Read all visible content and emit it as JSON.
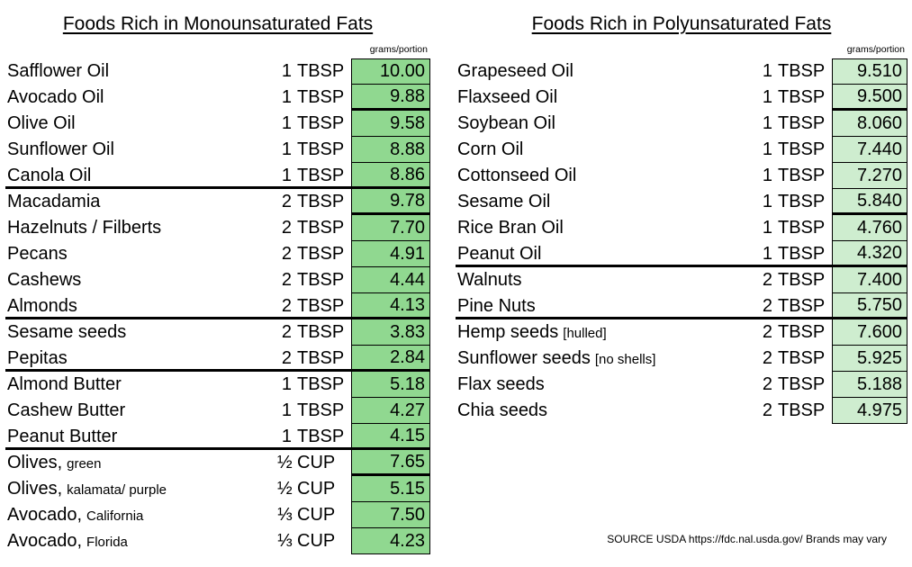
{
  "tables": [
    {
      "title": "Foods Rich in Monounsaturated Fats",
      "unit_label": "grams/portion",
      "cell_color": "#90D890",
      "rows": [
        {
          "name": "Safflower Oil",
          "portion": "1 TBSP",
          "value": "10.00"
        },
        {
          "name": "Avocado Oil",
          "portion": "1 TBSP",
          "value": "9.88",
          "vthick": true
        },
        {
          "name": "Olive Oil",
          "portion": "1 TBSP",
          "value": "9.58"
        },
        {
          "name": "Sunflower Oil",
          "portion": "1 TBSP",
          "value": "8.88"
        },
        {
          "name": "Canola Oil",
          "portion": "1 TBSP",
          "value": "8.86",
          "group_end": true
        },
        {
          "name": "Macadamia",
          "portion": "2 TBSP",
          "value": "9.78",
          "vthick": true
        },
        {
          "name": "Hazelnuts / Filberts",
          "portion": "2 TBSP",
          "value": "7.70"
        },
        {
          "name": "Pecans",
          "portion": "2 TBSP",
          "value": "4.91"
        },
        {
          "name": "Cashews",
          "portion": "2 TBSP",
          "value": "4.44"
        },
        {
          "name": "Almonds",
          "portion": "2 TBSP",
          "value": "4.13",
          "group_end": true
        },
        {
          "name": "Sesame seeds",
          "portion": "2 TBSP",
          "value": "3.83"
        },
        {
          "name": "Pepitas",
          "portion": "2 TBSP",
          "value": "2.84",
          "group_end": true
        },
        {
          "name": "Almond Butter",
          "portion": "1 TBSP",
          "value": "5.18"
        },
        {
          "name": "Cashew Butter",
          "portion": "1 TBSP",
          "value": "4.27"
        },
        {
          "name": "Peanut Butter",
          "portion": "1 TBSP",
          "value": "4.15",
          "group_end": true
        },
        {
          "name": "Olives,",
          "sub": "green",
          "portion": "½ CUP",
          "value": "7.65",
          "vthick": true
        },
        {
          "name": "Olives,",
          "sub": "kalamata/ purple",
          "portion": "½ CUP",
          "value": "5.15"
        },
        {
          "name": "Avocado,",
          "sub": "California",
          "portion": "⅓ CUP",
          "value": "7.50"
        },
        {
          "name": "Avocado,",
          "sub": "Florida",
          "portion": "⅓ CUP",
          "value": "4.23"
        }
      ]
    },
    {
      "title": "Foods Rich in Polyunsaturated Fats",
      "unit_label": "grams/portion",
      "cell_color": "#CEEDCF",
      "rows": [
        {
          "name": "Grapeseed Oil",
          "portion": "1 TBSP",
          "value": "9.510"
        },
        {
          "name": "Flaxseed Oil",
          "portion": "1 TBSP",
          "value": "9.500",
          "vthick": true
        },
        {
          "name": "Soybean Oil",
          "portion": "1 TBSP",
          "value": "8.060"
        },
        {
          "name": "Corn Oil",
          "portion": "1 TBSP",
          "value": "7.440"
        },
        {
          "name": "Cottonseed Oil",
          "portion": "1 TBSP",
          "value": "7.270"
        },
        {
          "name": "Sesame Oil",
          "portion": "1 TBSP",
          "value": "5.840",
          "vthick": true
        },
        {
          "name": "Rice Bran Oil",
          "portion": "1 TBSP",
          "value": "4.760"
        },
        {
          "name": "Peanut Oil",
          "portion": "1 TBSP",
          "value": "4.320",
          "group_end": true
        },
        {
          "name": "Walnuts",
          "portion": "2 TBSP",
          "value": "7.400"
        },
        {
          "name": "Pine Nuts",
          "portion": "2 TBSP",
          "value": "5.750",
          "group_end": true
        },
        {
          "name": "Hemp seeds",
          "sub": "[hulled]",
          "portion": "2 TBSP",
          "value": "7.600"
        },
        {
          "name": "Sunflower seeds",
          "sub": "[no shells]",
          "portion": "2 TBSP",
          "value": "5.925"
        },
        {
          "name": "Flax seeds",
          "portion": "2 TBSP",
          "value": "5.188"
        },
        {
          "name": "Chia seeds",
          "portion": "2 TBSP",
          "value": "4.975"
        }
      ]
    }
  ],
  "footer": {
    "source_note": "SOURCE USDA https://fdc.nal.usda.gov/ Brands may vary"
  }
}
